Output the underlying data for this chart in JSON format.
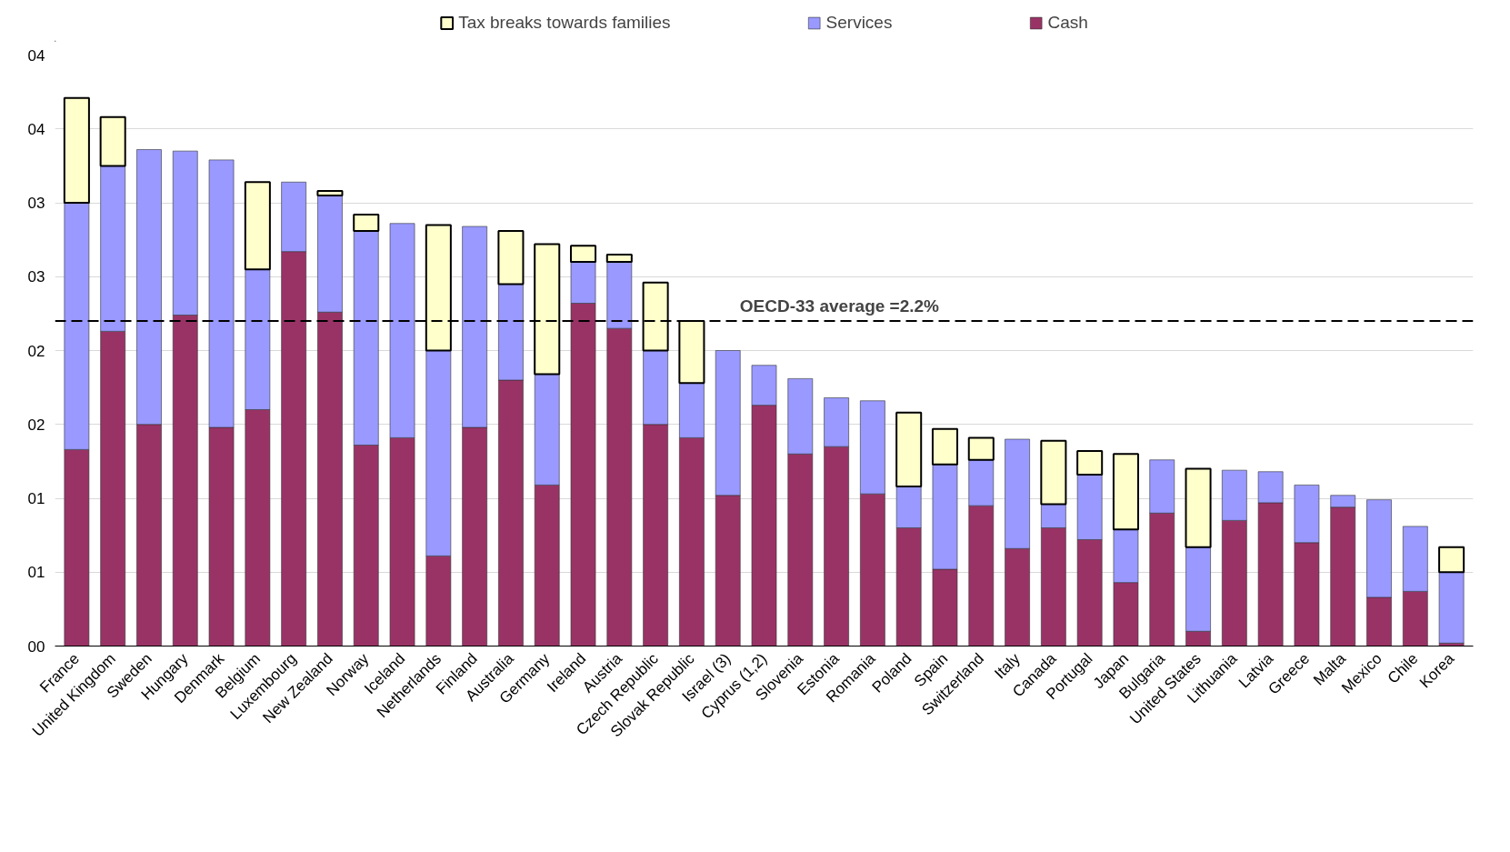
{
  "chart_data": {
    "type": "bar",
    "stacked": true,
    "categories": [
      "France",
      "United Kingdom",
      "Sweden",
      "Hungary",
      "Denmark",
      "Belgium",
      "Luxembourg",
      "New Zealand",
      "Norway",
      "Iceland",
      "Netherlands",
      "Finland",
      "Australia",
      "Germany",
      "Ireland",
      "Austria",
      "Czech Republic",
      "Slovak Republic",
      "Israel (3)",
      "Cyprus (1,2)",
      "Slovenia",
      "Estonia",
      "Romania",
      "Poland",
      "Spain",
      "Switzerland",
      "Italy",
      "Canada",
      "Portugal",
      "Japan",
      "Bulgaria",
      "United States",
      "Lithuania",
      "Latvia",
      "Greece",
      "Malta",
      "Mexico",
      "Chile",
      "Korea"
    ],
    "series": [
      {
        "name": "Cash",
        "color": "#993366",
        "values": [
          1.33,
          2.13,
          1.5,
          2.24,
          1.48,
          1.6,
          2.67,
          2.26,
          1.36,
          1.41,
          0.61,
          1.48,
          1.8,
          1.09,
          2.32,
          2.15,
          1.5,
          1.41,
          1.02,
          1.63,
          1.3,
          1.35,
          1.03,
          0.8,
          0.52,
          0.95,
          0.66,
          0.8,
          0.72,
          0.43,
          0.9,
          0.1,
          0.85,
          0.97,
          0.7,
          0.94,
          0.33,
          0.37,
          0.02
        ]
      },
      {
        "name": "Services",
        "color": "#9999ff",
        "values": [
          1.67,
          1.12,
          1.86,
          1.11,
          1.81,
          0.95,
          0.47,
          0.79,
          1.45,
          1.45,
          1.39,
          1.36,
          0.65,
          0.75,
          0.28,
          0.45,
          0.5,
          0.37,
          0.98,
          0.27,
          0.51,
          0.33,
          0.63,
          0.28,
          0.71,
          0.31,
          0.74,
          0.16,
          0.44,
          0.36,
          0.36,
          0.57,
          0.34,
          0.21,
          0.39,
          0.08,
          0.66,
          0.44,
          0.48
        ]
      },
      {
        "name": "Tax breaks towards families",
        "color": "#ffffcc",
        "values": [
          0.71,
          0.33,
          null,
          null,
          null,
          0.59,
          null,
          0.03,
          0.11,
          null,
          0.85,
          null,
          0.36,
          0.88,
          0.11,
          0.05,
          0.46,
          0.42,
          null,
          null,
          null,
          null,
          null,
          0.5,
          0.24,
          0.15,
          null,
          0.43,
          0.16,
          0.51,
          null,
          0.53,
          null,
          null,
          null,
          null,
          null,
          null,
          0.17
        ]
      }
    ],
    "ylim": [
      0,
      4.0
    ],
    "yticks": [
      {
        "value": 0,
        "label": "00"
      },
      {
        "value": 0.5,
        "label": "01"
      },
      {
        "value": 1.0,
        "label": "01"
      },
      {
        "value": 1.5,
        "label": "02"
      },
      {
        "value": 2.0,
        "label": "02"
      },
      {
        "value": 2.5,
        "label": "03"
      },
      {
        "value": 3.0,
        "label": "03"
      },
      {
        "value": 3.5,
        "label": "04"
      },
      {
        "value": 4.0,
        "label": "04"
      }
    ],
    "grid": "y",
    "legend": "top",
    "ref_lines": [
      {
        "axis": "y",
        "value": 2.2,
        "label": "OECD-33 average =2.2%",
        "color": "#000000",
        "line_style": "dashed"
      }
    ]
  }
}
